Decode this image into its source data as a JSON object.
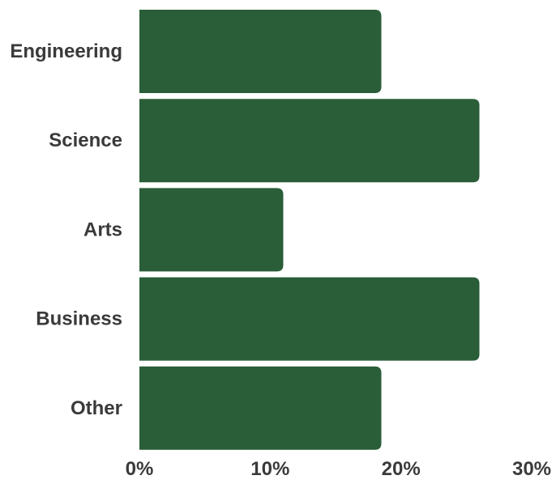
{
  "chart_data": {
    "type": "bar",
    "orientation": "horizontal",
    "categories": [
      "Engineering",
      "Science",
      "Arts",
      "Business",
      "Other"
    ],
    "values": [
      18.5,
      26,
      11,
      26,
      18.5
    ],
    "xlim": [
      0,
      30
    ],
    "x_ticks": [
      0,
      10,
      20,
      30
    ],
    "x_tick_labels": [
      "0%",
      "10%",
      "20%",
      "30%"
    ],
    "title": "",
    "xlabel": "",
    "ylabel": "",
    "grid": false,
    "legend": "none",
    "colors": {
      "bar": "#2a5e38",
      "text": "#3a3a3a"
    }
  }
}
